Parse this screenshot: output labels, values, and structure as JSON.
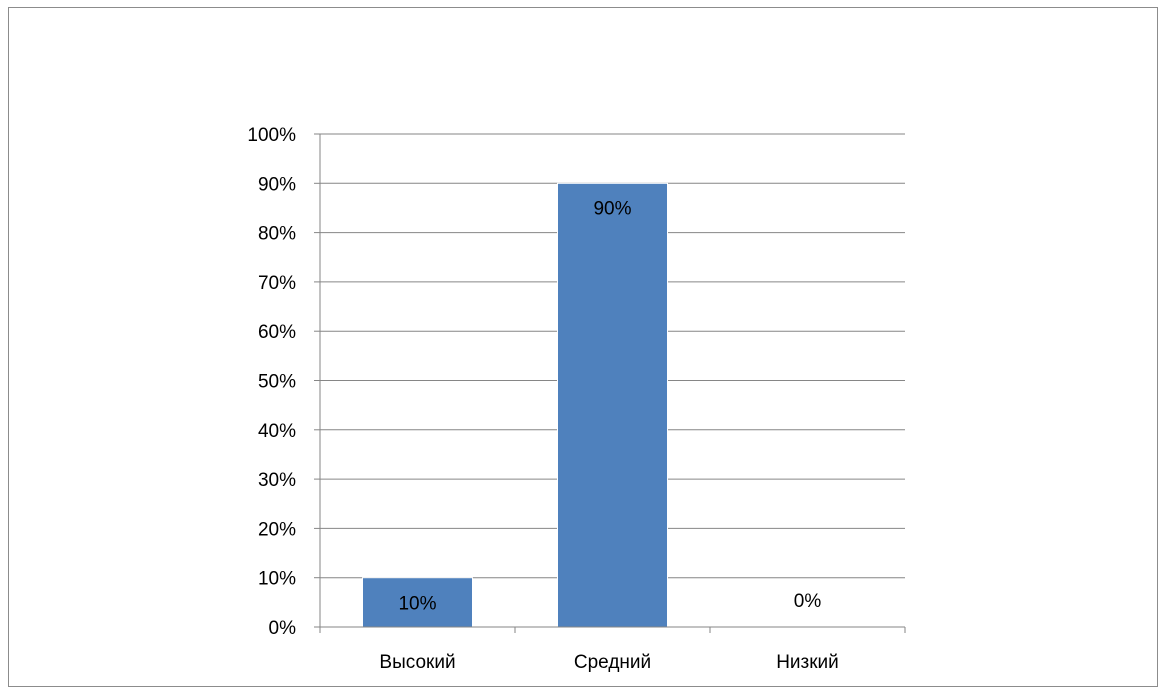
{
  "chart_data": {
    "type": "bar",
    "categories": [
      "Высокий",
      "Средний",
      "Низкий"
    ],
    "values": [
      10,
      90,
      0
    ],
    "data_labels": [
      "10%",
      "90%",
      "0%"
    ],
    "y_ticks": [
      "0%",
      "10%",
      "20%",
      "30%",
      "40%",
      "50%",
      "60%",
      "70%",
      "80%",
      "90%",
      "100%"
    ],
    "ylim": [
      0,
      100
    ],
    "title": "",
    "xlabel": "",
    "ylabel": "",
    "grid": true,
    "legend": "none",
    "bar_color": "#4f81bd"
  }
}
